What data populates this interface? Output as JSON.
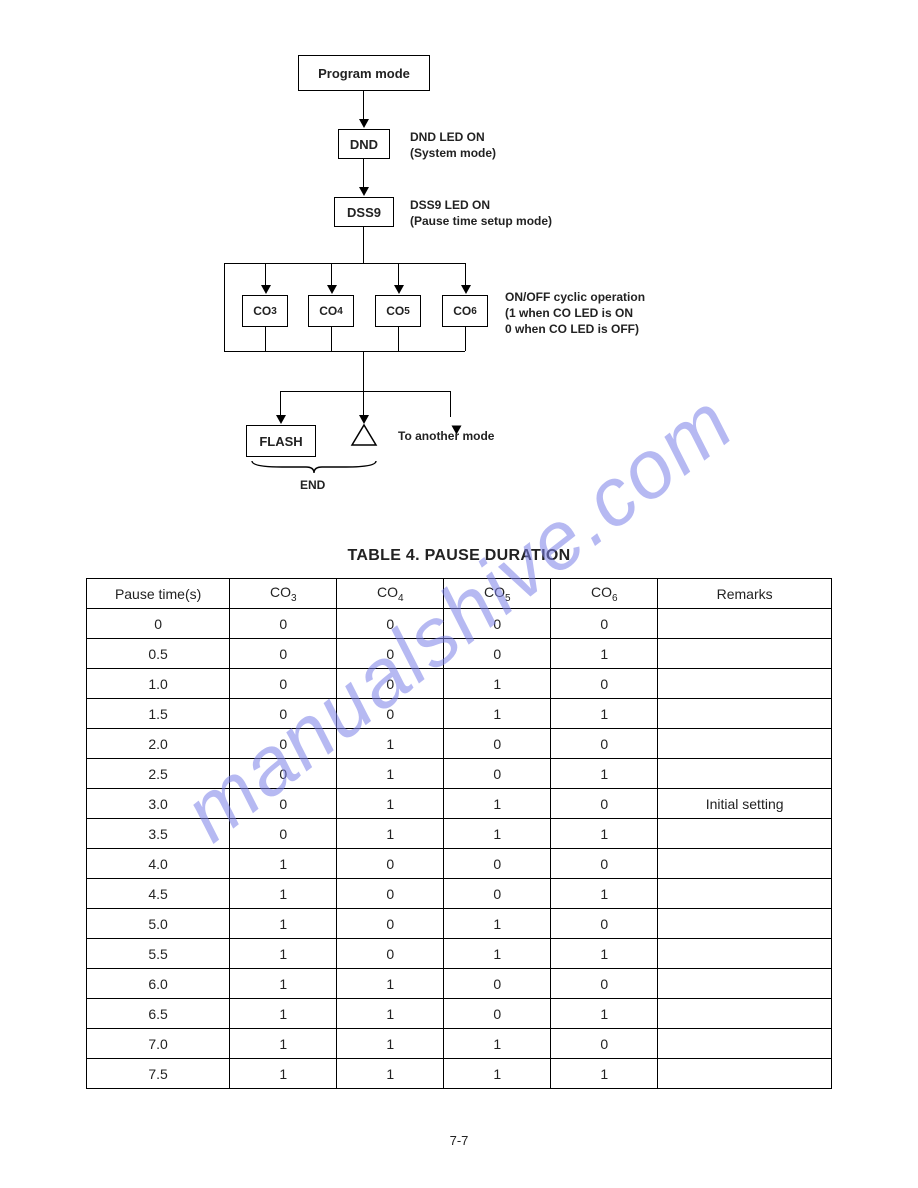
{
  "watermark": "manualshive.com",
  "flowchart": {
    "nodes": {
      "program_mode": "Program mode",
      "dnd": "DND",
      "dss9": "DSS9",
      "co3": "CO",
      "co3_sub": "3",
      "co4": "CO",
      "co4_sub": "4",
      "co5": "CO",
      "co5_sub": "5",
      "co6": "CO",
      "co6_sub": "6",
      "flash": "FLASH",
      "end": "END"
    },
    "labels": {
      "dnd_side": "DND LED ON\n(System mode)",
      "dss9_side": "DSS9 LED ON\n(Pause time setup mode)",
      "co_side": "ON/OFF cyclic operation\n(1 when CO LED is ON\n0 when CO LED is OFF)",
      "to_another": "To another mode"
    }
  },
  "table_title": "TABLE 4. PAUSE DURATION",
  "table": {
    "columns": [
      "Pause time(s)",
      "CO3",
      "CO4",
      "CO5",
      "CO6",
      "Remarks"
    ],
    "col_subscripts": [
      null,
      "3",
      "4",
      "5",
      "6",
      null
    ],
    "col_base": [
      null,
      "CO",
      "CO",
      "CO",
      "CO",
      null
    ],
    "rows": [
      [
        "0",
        "0",
        "0",
        "0",
        "0",
        ""
      ],
      [
        "0.5",
        "0",
        "0",
        "0",
        "1",
        ""
      ],
      [
        "1.0",
        "0",
        "0",
        "1",
        "0",
        ""
      ],
      [
        "1.5",
        "0",
        "0",
        "1",
        "1",
        ""
      ],
      [
        "2.0",
        "0",
        "1",
        "0",
        "0",
        ""
      ],
      [
        "2.5",
        "0",
        "1",
        "0",
        "1",
        ""
      ],
      [
        "3.0",
        "0",
        "1",
        "1",
        "0",
        "Initial setting"
      ],
      [
        "3.5",
        "0",
        "1",
        "1",
        "1",
        ""
      ],
      [
        "4.0",
        "1",
        "0",
        "0",
        "0",
        ""
      ],
      [
        "4.5",
        "1",
        "0",
        "0",
        "1",
        ""
      ],
      [
        "5.0",
        "1",
        "0",
        "1",
        "0",
        ""
      ],
      [
        "5.5",
        "1",
        "0",
        "1",
        "1",
        ""
      ],
      [
        "6.0",
        "1",
        "1",
        "0",
        "0",
        ""
      ],
      [
        "6.5",
        "1",
        "1",
        "0",
        "1",
        ""
      ],
      [
        "7.0",
        "1",
        "1",
        "1",
        "0",
        ""
      ],
      [
        "7.5",
        "1",
        "1",
        "1",
        "1",
        ""
      ]
    ]
  },
  "page_number": "7-7"
}
